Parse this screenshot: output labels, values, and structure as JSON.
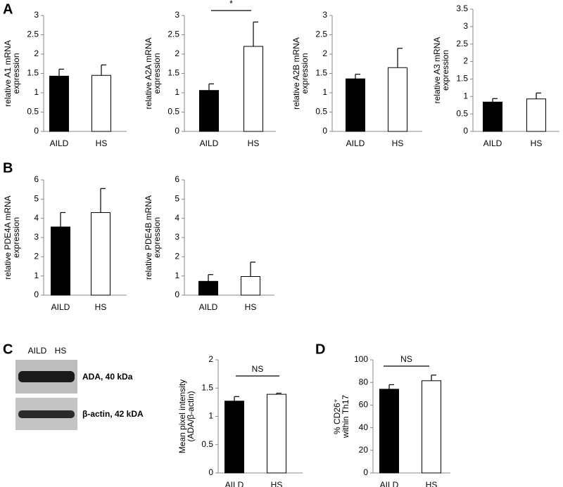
{
  "panel_labels": [
    "A",
    "B",
    "C",
    "D"
  ],
  "blot": {
    "lanes": [
      "AILD",
      "HS"
    ],
    "bands": [
      "ADA, 40 kDa",
      "β-actin, 42 kDA"
    ]
  },
  "chart_data": [
    {
      "type": "bar",
      "ylabel": [
        "relative A1 mRNA",
        "expression"
      ],
      "categories": [
        "AILD",
        "HS"
      ],
      "values": [
        1.43,
        1.45
      ],
      "errors": [
        0.18,
        0.27
      ],
      "colors": [
        "#000000",
        "#ffffff"
      ],
      "ylim": [
        0,
        3
      ],
      "yticks": [
        0,
        0.5,
        1,
        1.5,
        2,
        2.5,
        3
      ]
    },
    {
      "type": "bar",
      "ylabel": [
        "relative A2A mRNA",
        "expression"
      ],
      "categories": [
        "AILD",
        "HS"
      ],
      "values": [
        1.06,
        2.2
      ],
      "errors": [
        0.17,
        0.63
      ],
      "colors": [
        "#000000",
        "#ffffff"
      ],
      "ylim": [
        0,
        3
      ],
      "yticks": [
        0,
        0.5,
        1,
        1.5,
        2,
        2.5,
        3
      ],
      "annotation": "*"
    },
    {
      "type": "bar",
      "ylabel": [
        "relative A2B mRNA",
        "expression"
      ],
      "categories": [
        "AILD",
        "HS"
      ],
      "values": [
        1.36,
        1.65
      ],
      "errors": [
        0.12,
        0.5
      ],
      "colors": [
        "#000000",
        "#ffffff"
      ],
      "ylim": [
        0,
        3
      ],
      "yticks": [
        0,
        0.5,
        1,
        1.5,
        2,
        2.5,
        3
      ]
    },
    {
      "type": "bar",
      "ylabel": [
        "relative A3 mRNA",
        "expression"
      ],
      "categories": [
        "AILD",
        "HS"
      ],
      "values": [
        0.84,
        0.93
      ],
      "errors": [
        0.1,
        0.17
      ],
      "colors": [
        "#000000",
        "#ffffff"
      ],
      "ylim": [
        0,
        3.5
      ],
      "yticks": [
        0,
        0.5,
        1,
        1.5,
        2,
        2.5,
        3,
        3.5
      ]
    },
    {
      "type": "bar",
      "ylabel": [
        "relative PDE4A mRNA",
        "expression"
      ],
      "categories": [
        "AILD",
        "HS"
      ],
      "values": [
        3.55,
        4.3
      ],
      "errors": [
        0.75,
        1.25
      ],
      "colors": [
        "#000000",
        "#ffffff"
      ],
      "ylim": [
        0,
        6
      ],
      "yticks": [
        0,
        1,
        2,
        3,
        4,
        5,
        6
      ]
    },
    {
      "type": "bar",
      "ylabel": [
        "relative PDE4B mRNA",
        "expression"
      ],
      "categories": [
        "AILD",
        "HS"
      ],
      "values": [
        0.72,
        0.97
      ],
      "errors": [
        0.35,
        0.75
      ],
      "colors": [
        "#000000",
        "#ffffff"
      ],
      "ylim": [
        0,
        6
      ],
      "yticks": [
        0,
        1,
        2,
        3,
        4,
        5,
        6
      ]
    },
    {
      "type": "bar",
      "ylabel": [
        "Mean pixel intensity",
        "(ADA/β-actin)"
      ],
      "categories": [
        "AILD",
        "HS"
      ],
      "values": [
        1.27,
        1.39
      ],
      "errors": [
        0.08,
        0.02
      ],
      "colors": [
        "#000000",
        "#ffffff"
      ],
      "ylim": [
        0,
        2
      ],
      "yticks": [
        0,
        0.5,
        1,
        1.5,
        2
      ],
      "annotation": "NS"
    },
    {
      "type": "bar",
      "ylabel": [
        "% CD26⁺",
        "within Th17"
      ],
      "categories": [
        "AILD",
        "HS"
      ],
      "values": [
        74,
        81.5
      ],
      "errors": [
        4,
        5
      ],
      "colors": [
        "#000000",
        "#ffffff"
      ],
      "ylim": [
        0,
        100
      ],
      "yticks": [
        0,
        20,
        40,
        60,
        80,
        100
      ],
      "annotation": "NS"
    }
  ]
}
